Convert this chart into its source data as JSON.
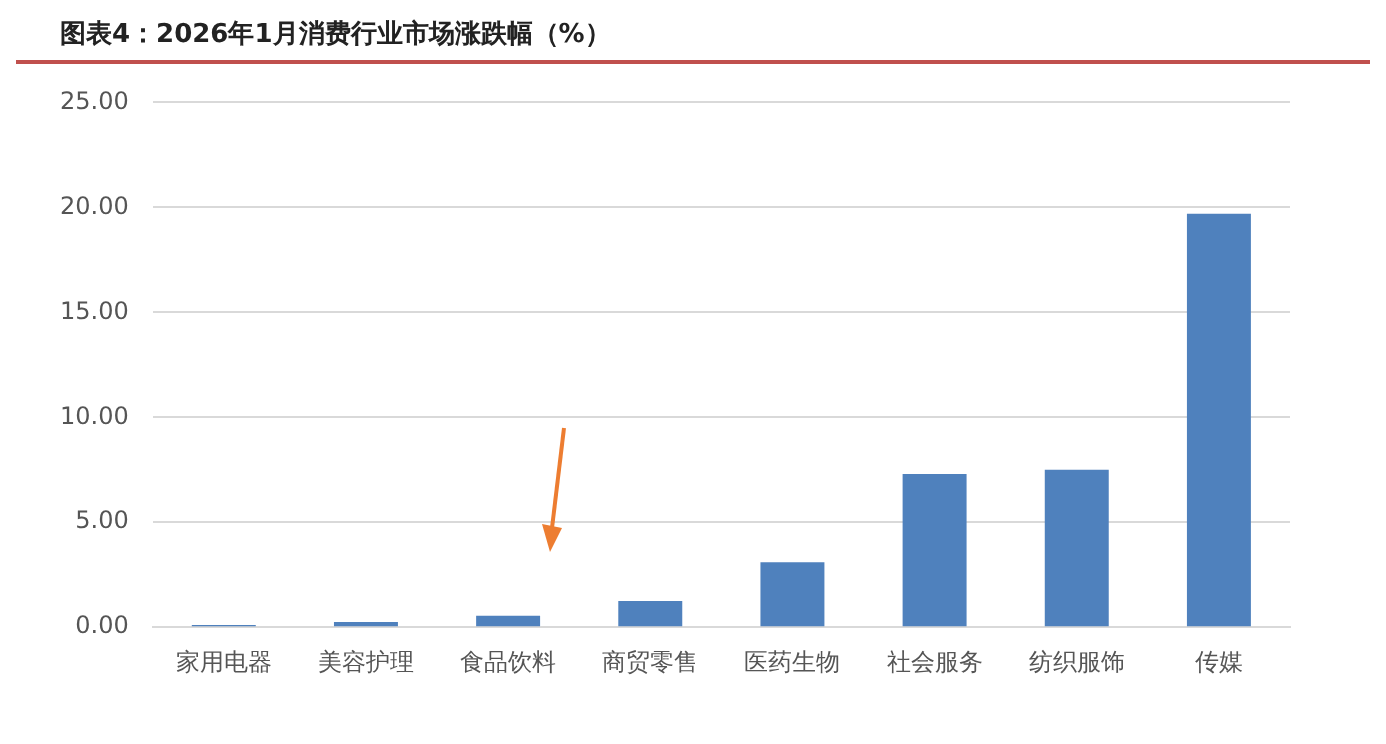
{
  "chart_data": {
    "type": "bar",
    "title": "图表4：2026年1月消费行业市场涨跌幅（%）",
    "categories": [
      "家用电器",
      "美容护理",
      "食品饮料",
      "商贸零售",
      "医药生物",
      "社会服务",
      "纺织服饰",
      "传媒"
    ],
    "values": [
      0.1,
      0.25,
      0.55,
      1.25,
      3.1,
      7.3,
      7.5,
      19.7
    ],
    "color": "#4f81bd",
    "ylim": [
      0,
      25
    ],
    "yticks": [
      {
        "value": 0,
        "label": "0.00"
      },
      {
        "value": 5,
        "label": "5.00"
      },
      {
        "value": 10,
        "label": "10.00"
      },
      {
        "value": 15,
        "label": "15.00"
      },
      {
        "value": 20,
        "label": "20.00"
      },
      {
        "value": 25,
        "label": "25.00"
      }
    ],
    "grid": "y"
  }
}
